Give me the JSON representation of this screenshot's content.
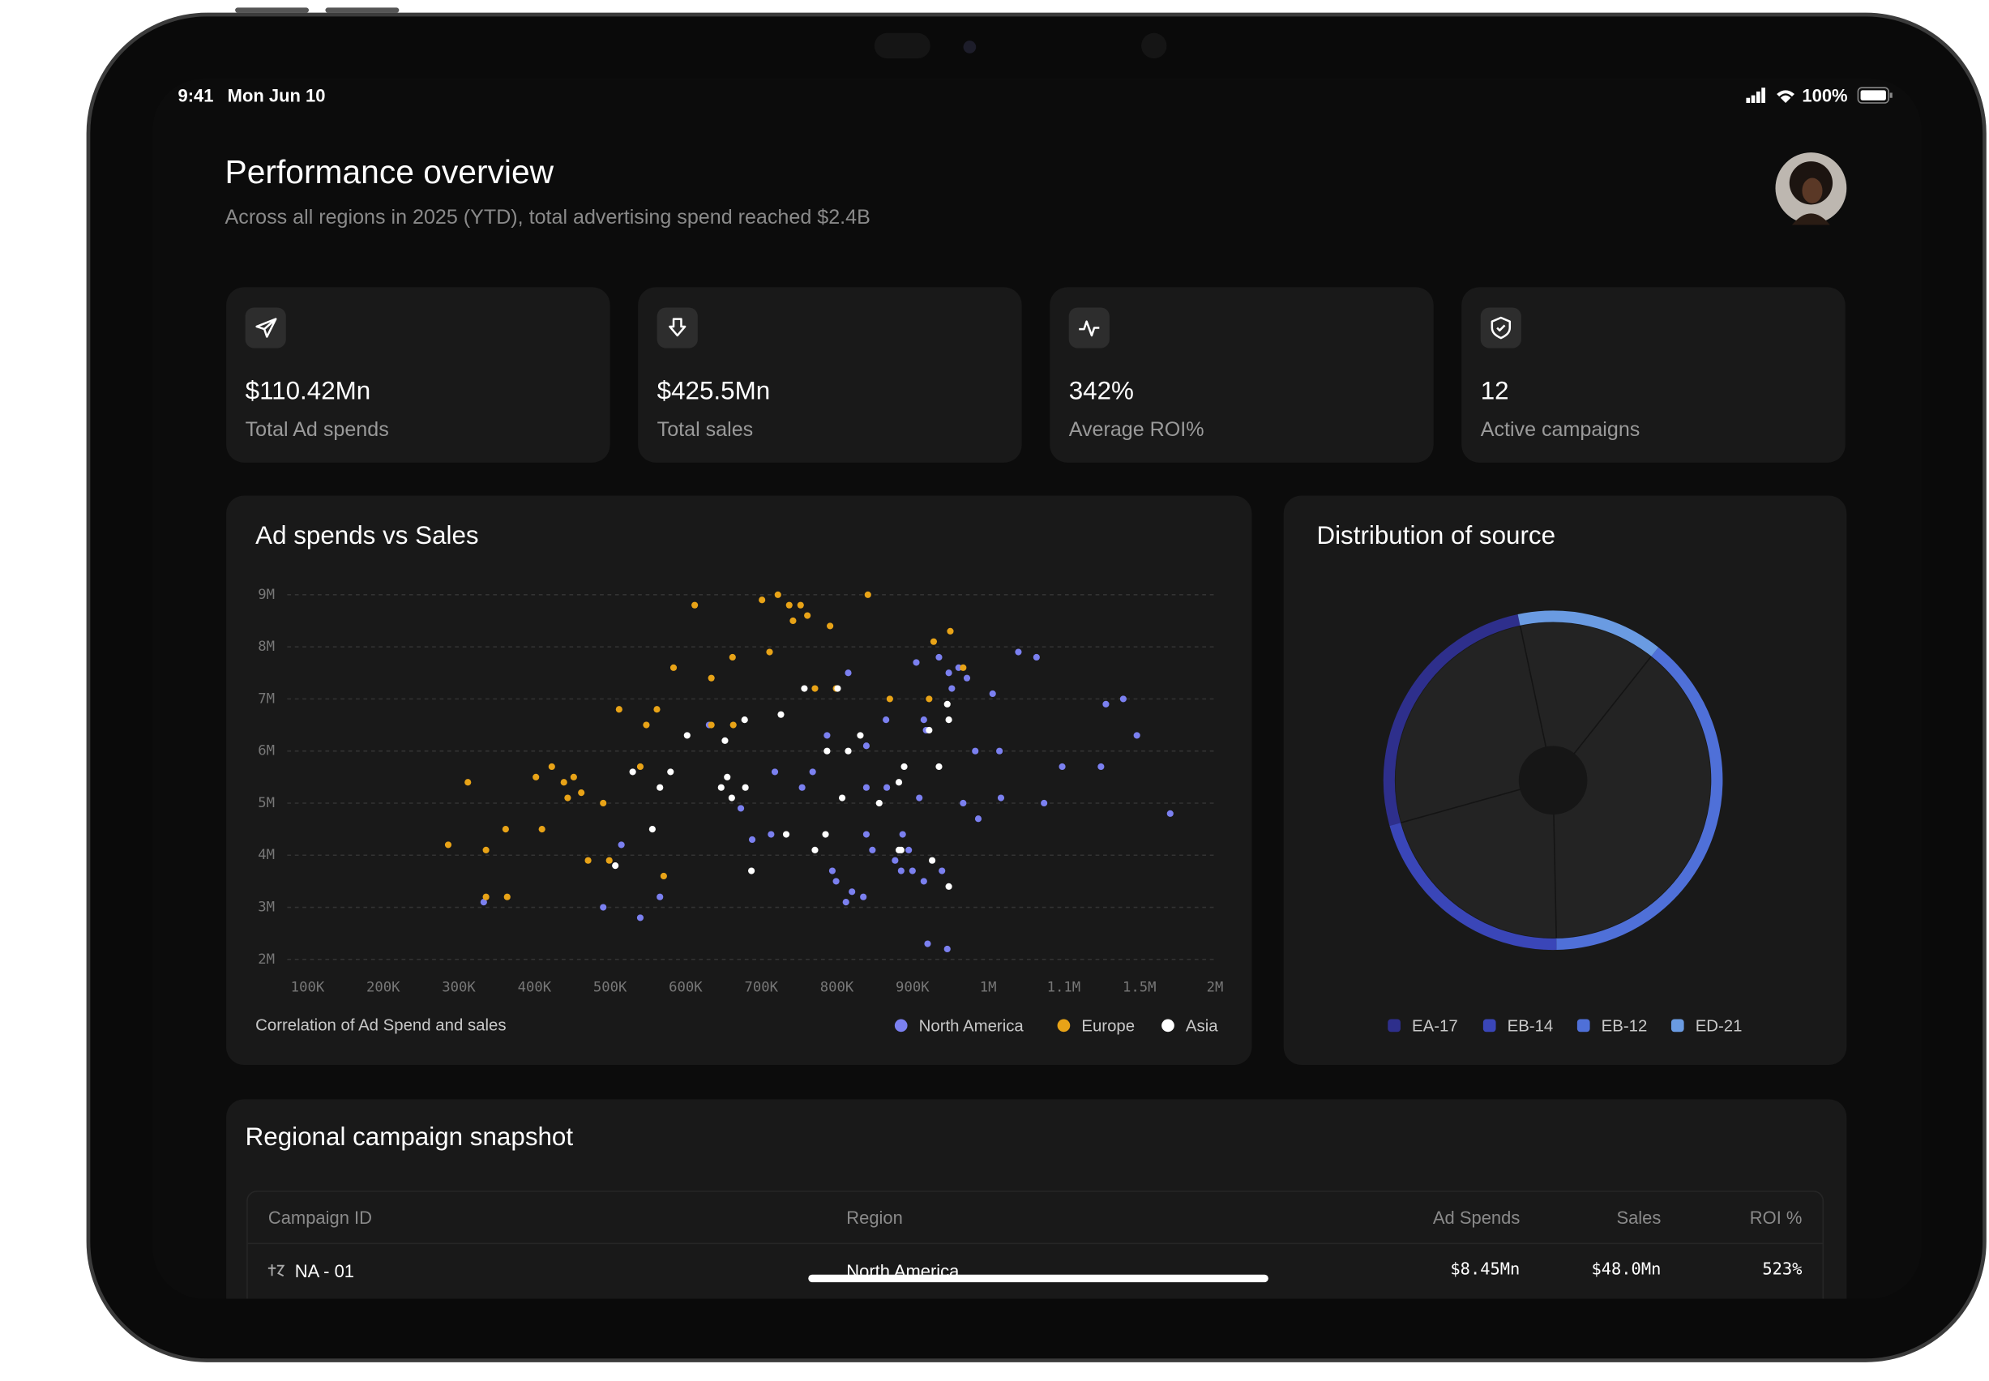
{
  "status_bar": {
    "time": "9:41",
    "date": "Mon Jun 10",
    "battery": "100%"
  },
  "header": {
    "title": "Performance overview",
    "subtitle": "Across all regions in 2025 (YTD), total advertising spend reached $2.4B"
  },
  "kpi_cards": [
    {
      "value": "$110.42Mn",
      "label": "Total Ad spends"
    },
    {
      "value": "$425.5Mn",
      "label": "Total sales"
    },
    {
      "value": "342%",
      "label": "Average ROI%"
    },
    {
      "value": "12",
      "label": "Active campaigns"
    }
  ],
  "chart_data": [
    {
      "type": "scatter",
      "title": "Ad spends vs Sales",
      "caption": "Correlation of Ad Spend and sales",
      "xlim": [
        100000,
        2000000
      ],
      "ylim": [
        2000000,
        9000000
      ],
      "grid": true,
      "xticks": [
        {
          "value": 100000,
          "label": "100K"
        },
        {
          "value": 200000,
          "label": "200K"
        },
        {
          "value": 300000,
          "label": "300K"
        },
        {
          "value": 400000,
          "label": "400K"
        },
        {
          "value": 500000,
          "label": "500K"
        },
        {
          "value": 600000,
          "label": "600K"
        },
        {
          "value": 700000,
          "label": "700K"
        },
        {
          "value": 800000,
          "label": "800K"
        },
        {
          "value": 900000,
          "label": "900K"
        },
        {
          "value": 1000000,
          "label": "1M"
        },
        {
          "value": 1100000,
          "label": "1.1M"
        },
        {
          "value": 1500000,
          "label": "1.5M"
        },
        {
          "value": 2000000,
          "label": "2M"
        }
      ],
      "yticks": [
        {
          "value": 9000000,
          "label": "9M"
        },
        {
          "value": 8000000,
          "label": "8M"
        },
        {
          "value": 7000000,
          "label": "7M"
        },
        {
          "value": 6000000,
          "label": "6M"
        },
        {
          "value": 5000000,
          "label": "5M"
        },
        {
          "value": 4000000,
          "label": "4M"
        },
        {
          "value": 3000000,
          "label": "3M"
        },
        {
          "value": 2000000,
          "label": "2M"
        }
      ],
      "series": [
        {
          "name": "North America",
          "color": "#7b80f0",
          "x": [
            333000,
            491000,
            540000,
            515000,
            566000,
            631000,
            673000,
            688000,
            713000,
            718000,
            754000,
            768000,
            787000,
            794000,
            799000,
            812000,
            820000,
            835000,
            839000,
            815000,
            839000,
            839000,
            847000,
            865000,
            866000,
            877000,
            887000,
            885000,
            895000,
            900000,
            905000,
            909000,
            915000,
            915000,
            918000,
            920000,
            935000,
            939000,
            948000,
            952000,
            946000,
            961000,
            972000,
            967000,
            983000,
            987000,
            1006000,
            1015000,
            1017000,
            1040000,
            1064000,
            1074000,
            1098000,
            1297000,
            1323000,
            1415000,
            1487000,
            1704000
          ],
          "values": [
            3100000,
            3000000,
            2800000,
            4200000,
            3200000,
            6500000,
            4900000,
            4300000,
            4400000,
            5600000,
            5300000,
            5600000,
            6300000,
            3700000,
            3500000,
            3100000,
            3300000,
            3200000,
            6100000,
            7500000,
            5300000,
            4400000,
            4100000,
            6600000,
            5300000,
            3900000,
            4400000,
            3700000,
            4100000,
            3700000,
            7700000,
            5100000,
            6600000,
            3500000,
            6400000,
            2300000,
            7800000,
            3700000,
            7500000,
            7200000,
            2200000,
            7600000,
            7400000,
            5000000,
            6000000,
            4700000,
            7100000,
            6000000,
            5100000,
            7900000,
            7800000,
            5000000,
            5700000,
            5700000,
            6900000,
            7000000,
            6300000,
            4800000
          ]
        },
        {
          "name": "Europe",
          "color": "#e8a317",
          "x": [
            312000,
            286000,
            336000,
            336000,
            364000,
            362000,
            402000,
            423000,
            410000,
            439000,
            452000,
            444000,
            462000,
            491000,
            471000,
            499000,
            512000,
            540000,
            548000,
            562000,
            571000,
            584000,
            612000,
            634000,
            634000,
            662000,
            663000,
            701000,
            711000,
            722000,
            737000,
            752000,
            742000,
            761000,
            771000,
            791000,
            799000,
            841000,
            870000,
            922000,
            928000,
            950000,
            967000
          ],
          "values": [
            5400000,
            4200000,
            4100000,
            3200000,
            3200000,
            4500000,
            5500000,
            5700000,
            4500000,
            5400000,
            5500000,
            5100000,
            5200000,
            5000000,
            3900000,
            3900000,
            6800000,
            5700000,
            6500000,
            6800000,
            3600000,
            7600000,
            8800000,
            7400000,
            6500000,
            7800000,
            6500000,
            8900000,
            7900000,
            9000000,
            8800000,
            8800000,
            8500000,
            8600000,
            7200000,
            8400000,
            7200000,
            9000000,
            7000000,
            7000000,
            8100000,
            8300000,
            7600000
          ]
        },
        {
          "name": "Asia",
          "color": "#ffffff",
          "x": [
            507000,
            530000,
            556000,
            566000,
            580000,
            602000,
            647000,
            652000,
            655000,
            661000,
            678000,
            679000,
            687000,
            726000,
            733000,
            757000,
            771000,
            785000,
            787000,
            801000,
            807000,
            815000,
            831000,
            856000,
            882000,
            882000,
            889000,
            926000,
            935000,
            922000,
            946000,
            948000,
            948000,
            885000
          ],
          "values": [
            3800000,
            5600000,
            4500000,
            5300000,
            5600000,
            6300000,
            5300000,
            6200000,
            5500000,
            5100000,
            6600000,
            5300000,
            3700000,
            6700000,
            4400000,
            7200000,
            4100000,
            4400000,
            6000000,
            7200000,
            5100000,
            6000000,
            6300000,
            5000000,
            5400000,
            4100000,
            5700000,
            3900000,
            5700000,
            6400000,
            6900000,
            6600000,
            3400000,
            4100000
          ]
        }
      ]
    },
    {
      "type": "donut",
      "title": "Distribution of source",
      "categories": [
        "EA-17",
        "EB-14",
        "EB-12",
        "ED-21"
      ],
      "values": [
        26,
        21,
        39,
        14
      ],
      "colors": [
        "#2e2f8c",
        "#3a46b8",
        "#4f70d8",
        "#6a9be2"
      ]
    }
  ],
  "table": {
    "title": "Regional campaign snapshot",
    "columns": [
      "Campaign ID",
      "Region",
      "Ad Spends",
      "Sales",
      "ROI %"
    ],
    "rows": [
      [
        "NA - 01",
        "North America",
        "$8.45Mn",
        "$48.0Mn",
        "523%"
      ]
    ]
  }
}
